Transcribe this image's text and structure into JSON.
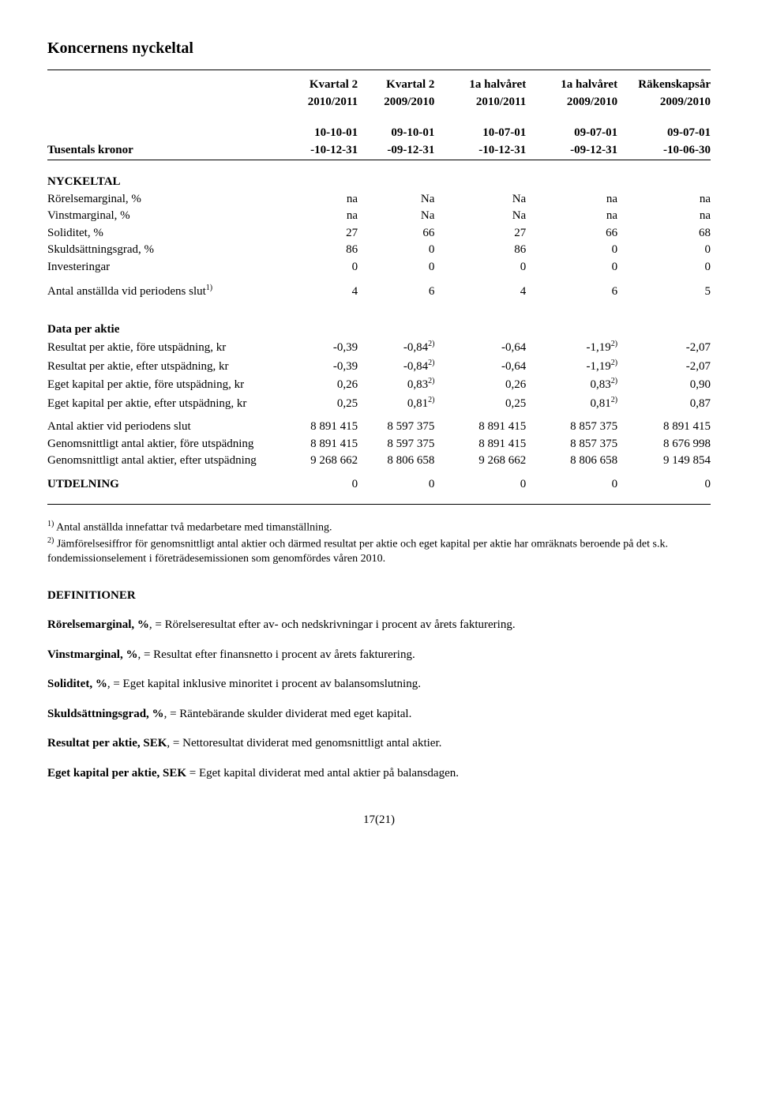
{
  "title": "Koncernens nyckeltal",
  "header": {
    "row1": [
      "Kvartal 2",
      "Kvartal 2",
      "1a halvåret",
      "1a halvåret",
      "Räkenskapsår"
    ],
    "row2": [
      "2010/2011",
      "2009/2010",
      "2010/2011",
      "2009/2010",
      "2009/2010"
    ],
    "left_label": "Tusentals kronor",
    "row3": [
      "10-10-01",
      "09-10-01",
      "10-07-01",
      "09-07-01",
      "09-07-01"
    ],
    "row4": [
      "-10-12-31",
      "-09-12-31",
      "-10-12-31",
      "-09-12-31",
      "-10-06-30"
    ]
  },
  "nyckeltal": {
    "heading": "NYCKELTAL",
    "rows": [
      {
        "label": "Rörelsemarginal, %",
        "vals": [
          "na",
          "Na",
          "Na",
          "na",
          "na"
        ]
      },
      {
        "label": "Vinstmarginal, %",
        "vals": [
          "na",
          "Na",
          "Na",
          "na",
          "na"
        ]
      },
      {
        "label": "Soliditet, %",
        "vals": [
          "27",
          "66",
          "27",
          "66",
          "68"
        ]
      },
      {
        "label": "Skuldsättningsgrad, %",
        "vals": [
          "86",
          "0",
          "86",
          "0",
          "0"
        ]
      },
      {
        "label": "Investeringar",
        "vals": [
          "0",
          "0",
          "0",
          "0",
          "0"
        ]
      }
    ],
    "antal_row": {
      "label_pre": "Antal anställda vid periodens slut",
      "sup": "1)",
      "vals": [
        "4",
        "6",
        "4",
        "6",
        "5"
      ]
    }
  },
  "data_per_aktie": {
    "heading": "Data per aktie",
    "rows": [
      {
        "label": "Resultat per aktie, före utspädning, kr",
        "vals": [
          "-0,39",
          "-0,84",
          "-0,64",
          "-1,19",
          "-2,07"
        ],
        "sup_idx": [
          1,
          3
        ]
      },
      {
        "label": "Resultat per aktie, efter utspädning, kr",
        "vals": [
          "-0,39",
          "-0,84",
          "-0,64",
          "-1,19",
          "-2,07"
        ],
        "sup_idx": [
          1,
          3
        ]
      },
      {
        "label": "Eget kapital per aktie, före utspädning, kr",
        "vals": [
          "0,26",
          "0,83",
          "0,26",
          "0,83",
          "0,90"
        ],
        "sup_idx": [
          1,
          3
        ]
      },
      {
        "label": "Eget kapital per aktie, efter utspädning, kr",
        "vals": [
          "0,25",
          "0,81",
          "0,25",
          "0,81",
          "0,87"
        ],
        "sup_idx": [
          1,
          3
        ]
      }
    ],
    "sup": "2)"
  },
  "aktier": {
    "rows": [
      {
        "label": "Antal aktier vid periodens slut",
        "vals": [
          "8 891 415",
          "8 597 375",
          "8 891 415",
          "8 857 375",
          "8 891 415"
        ]
      },
      {
        "label": "Genomsnittligt antal aktier, före utspädning",
        "vals": [
          "8 891 415",
          "8 597 375",
          "8 891 415",
          "8 857 375",
          "8 676 998"
        ]
      },
      {
        "label": "Genomsnittligt antal aktier, efter utspädning",
        "vals": [
          "9 268 662",
          "8 806 658",
          "9 268 662",
          "8 806 658",
          "9 149 854"
        ]
      }
    ]
  },
  "utdelning": {
    "label": "UTDELNING",
    "vals": [
      "0",
      "0",
      "0",
      "0",
      "0"
    ]
  },
  "footnotes": {
    "f1_sup": "1)",
    "f1": " Antal anställda innefattar två medarbetare med timanställning.",
    "f2_sup": "2)",
    "f2": " Jämförelsesiffror för genomsnittligt antal aktier och därmed resultat per aktie och eget kapital per aktie har omräknats beroende på det s.k. fondemissionselement i företrädesemissionen som genomfördes våren 2010."
  },
  "definitions": {
    "heading": "DEFINITIONER",
    "items": [
      {
        "term": "Rörelsemarginal, %",
        "text": ", = Rörelseresultat efter av- och nedskrivningar i procent av årets fakturering."
      },
      {
        "term": "Vinstmarginal, %",
        "text": ", = Resultat efter finansnetto i procent av årets fakturering."
      },
      {
        "term": "Soliditet, %",
        "text": ", = Eget kapital inklusive minoritet i procent av balansomslutning."
      },
      {
        "term": "Skuldsättningsgrad, %",
        "text": ", = Räntebärande skulder dividerat med eget kapital."
      },
      {
        "term": "Resultat per aktie, SEK",
        "text": ", = Nettoresultat dividerat med genomsnittligt antal aktier."
      },
      {
        "term": "Eget kapital per aktie, SEK",
        "text": " = Eget kapital dividerat med antal aktier på balansdagen."
      }
    ]
  },
  "pagefoot": "17(21)"
}
